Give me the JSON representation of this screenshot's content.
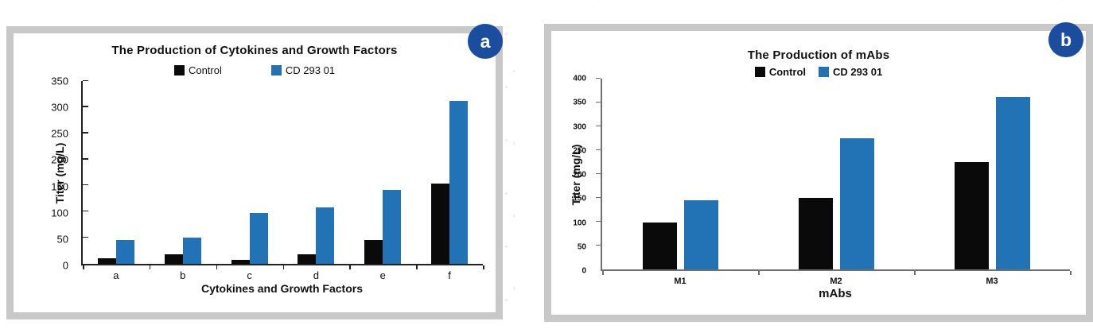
{
  "colors": {
    "control_bar": "#0a0a0a",
    "treatment_bar": "#2273b5",
    "badge_background": "#1a4d9e",
    "badge_text": "#ffffff",
    "panel_border": "#c8c8c8"
  },
  "panels": [
    {
      "badge": "a"
    },
    {
      "badge": "b"
    }
  ],
  "chart_data": [
    {
      "type": "bar",
      "title": "The Production of Cytokines and Growth Factors",
      "xlabel": "Cytokines and Growth Factors",
      "ylabel": "Titer (mg/L)",
      "ylim": [
        0,
        350
      ],
      "ytick_step": 50,
      "grid": false,
      "legend_position": "top-center",
      "categories": [
        "a",
        "b",
        "c",
        "d",
        "e",
        "f"
      ],
      "series": [
        {
          "name": "Control",
          "color": "#0a0a0a",
          "values": [
            10,
            19,
            7,
            18,
            45,
            153
          ]
        },
        {
          "name": "CD 293 01",
          "color": "#2273b5",
          "values": [
            46,
            50,
            97,
            108,
            141,
            312
          ]
        }
      ]
    },
    {
      "type": "bar",
      "title": "The Production of mAbs",
      "xlabel": "mAbs",
      "ylabel": "Titer (mg/L)",
      "ylim": [
        0,
        400
      ],
      "ytick_step": 50,
      "grid": false,
      "legend_position": "top-center",
      "categories": [
        "M1",
        "M2",
        "M3"
      ],
      "series": [
        {
          "name": "Control",
          "color": "#0a0a0a",
          "values": [
            98,
            150,
            225
          ]
        },
        {
          "name": "CD 293 01",
          "color": "#2273b5",
          "values": [
            145,
            275,
            362
          ]
        }
      ]
    }
  ]
}
